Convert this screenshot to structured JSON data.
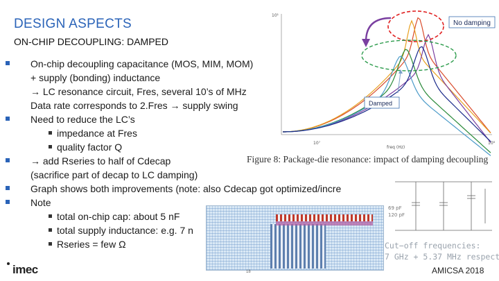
{
  "slide": {
    "title": "DESIGN ASPECTS",
    "subtitle": "ON-CHIP DECOUPLING: DAMPED",
    "bullets": [
      {
        "level": 1,
        "text": "On-chip decoupling capacitance (MOS, MIM, MOM)"
      },
      {
        "level": 1,
        "cont": true,
        "text": "+ supply (bonding) inductance"
      },
      {
        "level": 1,
        "cont": true,
        "text": "→ LC resonance circuit, Fres, several 10’s of MHz"
      },
      {
        "level": 1,
        "cont": true,
        "text": "Data rate corresponds to 2.Fres → supply swing"
      },
      {
        "level": 1,
        "text": "Need to reduce the LC’s"
      },
      {
        "level": 2,
        "text": "impedance at Fres"
      },
      {
        "level": 2,
        "text": "quality factor Q"
      },
      {
        "level": 1,
        "text": "→ add Rseries to half of Cdecap"
      },
      {
        "level": 1,
        "cont": true,
        "text": "(sacrifice part of decap to LC damping)"
      },
      {
        "level": 1,
        "text": "Graph shows both improvements (note: also Cdecap got optimized/incre"
      },
      {
        "level": 1,
        "text": "Note"
      },
      {
        "level": 2,
        "text": "total on-chip cap: about 5 nF"
      },
      {
        "level": 2,
        "text": "total supply inductance: e.g. 7 n"
      },
      {
        "level": 2,
        "text": "Rseries = few Ω"
      }
    ],
    "figure_caption": "Figure 8: Package-die resonance: impact of damping decoupling",
    "plot": {
      "no_damping_label": "No damping",
      "damped_label": "Damped",
      "xlabel": "freq (Hz)",
      "y_tick_top": "10¹",
      "x_ticks": [
        "10⁷",
        "10⁸"
      ],
      "colors": [
        "#d94a2a",
        "#e8a020",
        "#7a3fa0",
        "#2a8a3a",
        "#4a9ac8",
        "#1a2a8a"
      ]
    },
    "schematic": {
      "labels": [
        "69 pF",
        "120 pF"
      ]
    },
    "cutoff_lines": [
      "Cut−off frequencies:",
      "7 GHz + 5.37 MHz respect"
    ],
    "logo": "imec",
    "page_number": "18",
    "footer": "AMICSA 2018"
  }
}
